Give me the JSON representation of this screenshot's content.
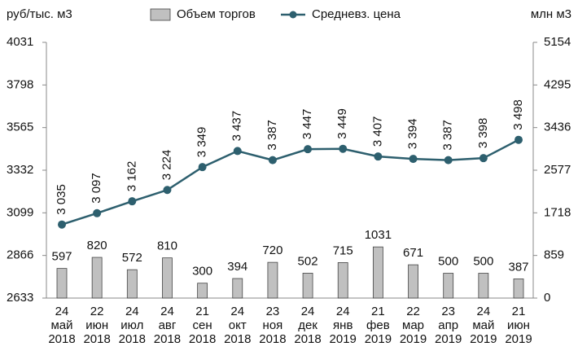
{
  "chart_data": {
    "type": "combo",
    "y_label": "руб/тыс. м3",
    "y2_label": "млн м3",
    "categories": [
      [
        "24",
        "май",
        "2018"
      ],
      [
        "22",
        "июн",
        "2018"
      ],
      [
        "24",
        "июл",
        "2018"
      ],
      [
        "24",
        "авг",
        "2018"
      ],
      [
        "21",
        "сен",
        "2018"
      ],
      [
        "24",
        "окт",
        "2018"
      ],
      [
        "23",
        "ноя",
        "2018"
      ],
      [
        "24",
        "дек",
        "2018"
      ],
      [
        "24",
        "янв",
        "2019"
      ],
      [
        "21",
        "фев",
        "2019"
      ],
      [
        "22",
        "мар",
        "2019"
      ],
      [
        "23",
        "апр",
        "2019"
      ],
      [
        "24",
        "май",
        "2019"
      ],
      [
        "21",
        "июн",
        "2019"
      ]
    ],
    "series": [
      {
        "name": "Объем торгов",
        "type": "bar",
        "axis": "y2",
        "color": "#c0c0c0",
        "values": [
          597,
          820,
          572,
          810,
          300,
          394,
          720,
          502,
          715,
          1031,
          671,
          500,
          500,
          387
        ]
      },
      {
        "name": "Средневз. цена",
        "type": "line",
        "axis": "y",
        "color": "#2d5f6e",
        "values": [
          3035,
          3097,
          3162,
          3224,
          3349,
          3437,
          3387,
          3447,
          3449,
          3407,
          3394,
          3387,
          3398,
          3498
        ],
        "value_labels": [
          "3 035",
          "3 097",
          "3 162",
          "3 224",
          "3 349",
          "3 437",
          "3 387",
          "3 447",
          "3 449",
          "3 407",
          "3 394",
          "3 387",
          "3 398",
          "3 498"
        ]
      }
    ],
    "ylim": [
      2633,
      4031
    ],
    "yticks": [
      2633,
      2866,
      3099,
      3332,
      3565,
      3798,
      4031
    ],
    "y2lim": [
      0,
      5154
    ],
    "y2ticks": [
      0,
      859,
      1718,
      2577,
      3436,
      4295,
      5154
    ]
  }
}
